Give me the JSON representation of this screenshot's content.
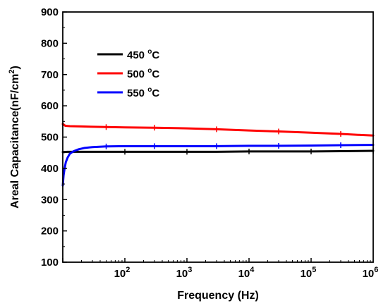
{
  "chart_data": {
    "type": "line",
    "xlabel": "Frequency (Hz)",
    "ylabel_main": "Areal Capacitance(nF/cm",
    "ylabel_sup": "2",
    "ylabel_end": ")",
    "x_scale": "log",
    "xlim": [
      10,
      1000000
    ],
    "ylim": [
      100,
      900
    ],
    "y_ticks": [
      100,
      200,
      300,
      400,
      500,
      600,
      700,
      800,
      900
    ],
    "x_ticks": [
      {
        "value": 100,
        "base": "10",
        "exp": "2"
      },
      {
        "value": 1000,
        "base": "10",
        "exp": "3"
      },
      {
        "value": 10000,
        "base": "10",
        "exp": "4"
      },
      {
        "value": 100000,
        "base": "10",
        "exp": "5"
      },
      {
        "value": 1000000,
        "base": "10",
        "exp": "6"
      }
    ],
    "legend_placement": "top-left",
    "series": [
      {
        "name": "450 °C",
        "label_value": "450",
        "label_unit": "C",
        "color": "#000000",
        "x": [
          10,
          12,
          15,
          20,
          30,
          50,
          100,
          300,
          1000,
          3000,
          10000,
          30000,
          100000,
          300000,
          1000000
        ],
        "y": [
          452,
          453,
          453,
          453,
          453,
          453,
          453,
          453,
          453,
          453,
          454,
          454,
          454,
          455,
          456
        ]
      },
      {
        "name": "500 °C",
        "label_value": "500",
        "label_unit": "C",
        "color": "#ff0000",
        "x": [
          10,
          11,
          13,
          20,
          50,
          100,
          300,
          1000,
          3000,
          10000,
          30000,
          100000,
          300000,
          1000000
        ],
        "y": [
          542,
          536,
          535,
          534,
          532,
          531,
          530,
          528,
          525,
          521,
          518,
          514,
          510,
          505
        ]
      },
      {
        "name": "550 °C",
        "label_value": "550",
        "label_unit": "C",
        "color": "#0000ff",
        "x": [
          10,
          10.3,
          10.7,
          11.2,
          12,
          13,
          15,
          18,
          22,
          30,
          50,
          100,
          300,
          1000,
          3000,
          10000,
          30000,
          100000,
          300000,
          1000000
        ],
        "y": [
          345,
          378,
          400,
          420,
          435,
          447,
          455,
          461,
          465,
          468,
          470,
          471,
          471,
          471,
          471,
          472,
          472,
          473,
          474,
          475
        ]
      }
    ]
  }
}
